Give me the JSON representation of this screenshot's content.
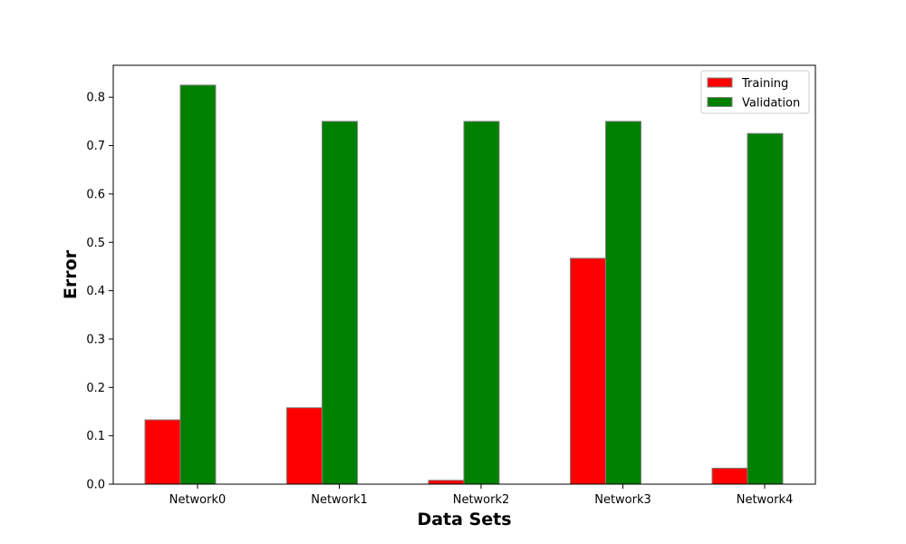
{
  "chart_data": {
    "type": "bar",
    "title": "",
    "xlabel": "Data Sets",
    "ylabel": "Error",
    "categories": [
      "Network0",
      "Network1",
      "Network2",
      "Network3",
      "Network4"
    ],
    "series": [
      {
        "name": "Training",
        "color": "#ff0000",
        "values": [
          0.133,
          0.158,
          0.008,
          0.467,
          0.033
        ]
      },
      {
        "name": "Validation",
        "color": "#008000",
        "values": [
          0.825,
          0.75,
          0.75,
          0.75,
          0.725
        ]
      }
    ],
    "ylim": [
      0,
      0.866
    ],
    "yticks": [
      0.0,
      0.1,
      0.2,
      0.3,
      0.4,
      0.5,
      0.6,
      0.7,
      0.8
    ],
    "ytick_labels": [
      "0.0",
      "0.1",
      "0.2",
      "0.3",
      "0.4",
      "0.5",
      "0.6",
      "0.7",
      "0.8"
    ],
    "grid": false,
    "legend_position": "top-right",
    "bar_edge_color": "#808080"
  }
}
